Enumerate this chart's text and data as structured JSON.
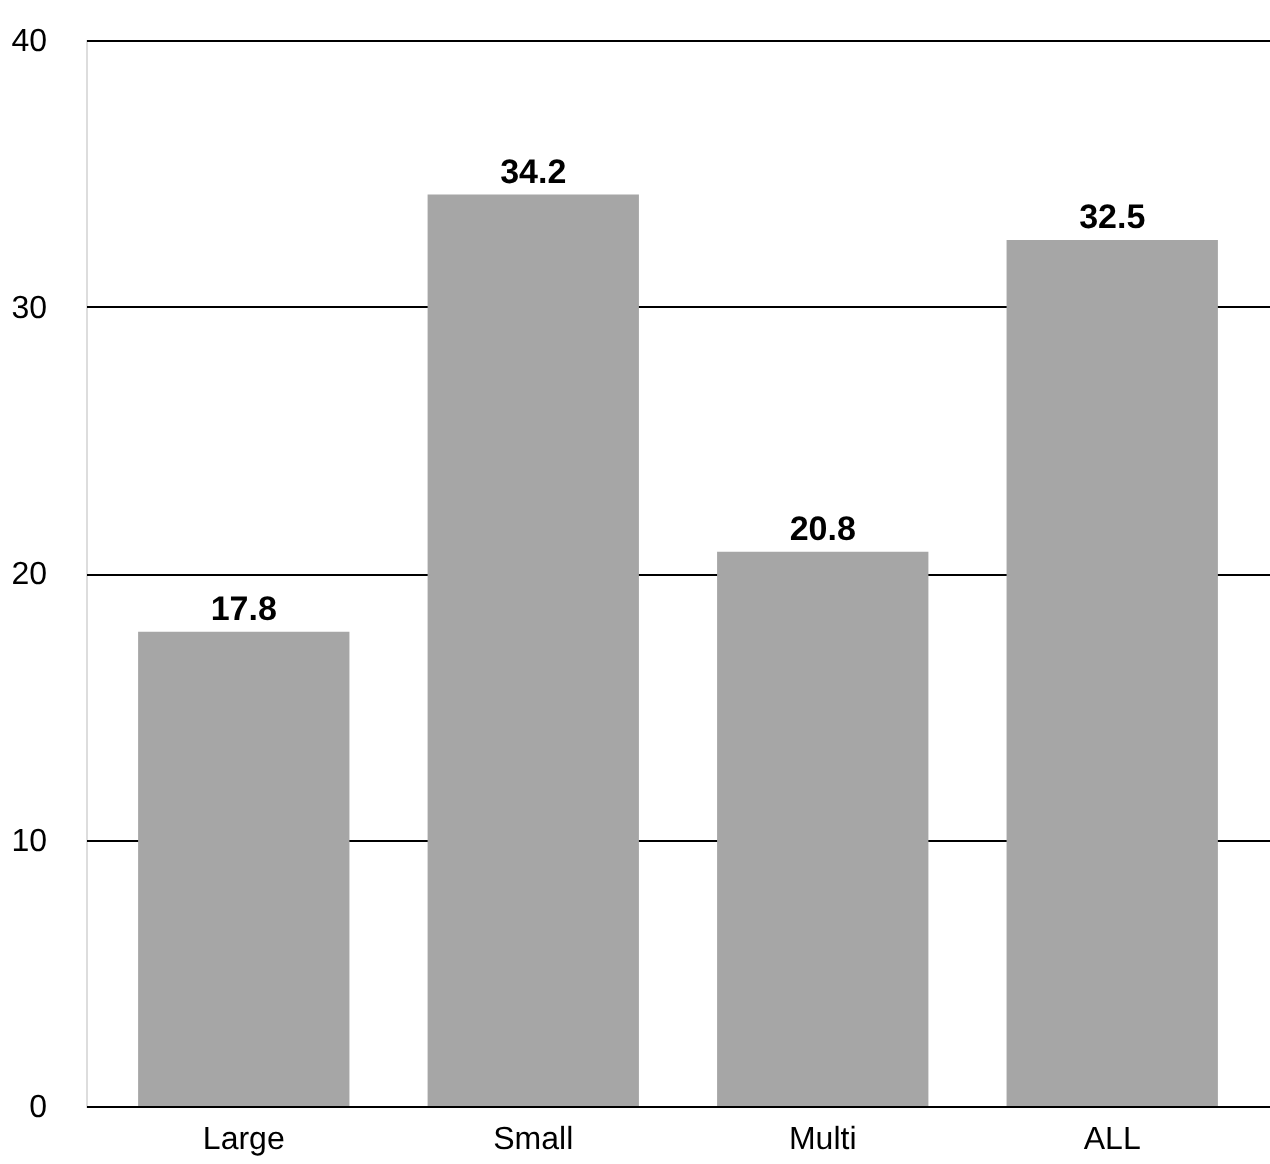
{
  "chart_data": {
    "type": "bar",
    "categories": [
      "Large",
      "Small",
      "Multi",
      "ALL"
    ],
    "values": [
      17.8,
      34.2,
      20.8,
      32.5
    ],
    "color": "#a6a6a6",
    "ylim": [
      0,
      40
    ],
    "yticks": [
      0,
      10,
      20,
      30,
      40
    ],
    "grid": "y",
    "data_labels": true
  }
}
